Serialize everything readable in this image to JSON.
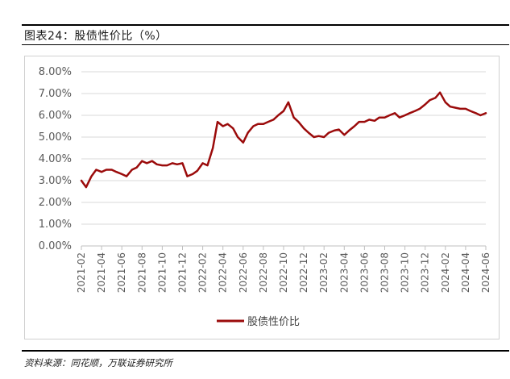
{
  "figure": {
    "title": "图表24：股债性价比（%）",
    "source": "资料来源：同花顺，万联证券研究所"
  },
  "chart_data": {
    "type": "line",
    "title": "",
    "xlabel": "",
    "ylabel": "",
    "ylim": [
      0,
      8
    ],
    "y_ticks": [
      "0.00%",
      "1.00%",
      "2.00%",
      "3.00%",
      "4.00%",
      "5.00%",
      "6.00%",
      "7.00%",
      "8.00%"
    ],
    "x_ticks": [
      "2021-02",
      "2021-04",
      "2021-06",
      "2021-08",
      "2021-10",
      "2021-12",
      "2022-02",
      "2022-04",
      "2022-06",
      "2022-08",
      "2022-10",
      "2022-12",
      "2023-02",
      "2023-04",
      "2023-06",
      "2023-08",
      "2023-10",
      "2023-12",
      "2024-02",
      "2024-04",
      "2024-06"
    ],
    "grid": true,
    "legend": "bottom-center",
    "color": "#9b0b0b",
    "series": [
      {
        "name": "股债性价比",
        "x": [
          "2021-02",
          "2021-02-15",
          "2021-03",
          "2021-03-15",
          "2021-04",
          "2021-04-15",
          "2021-05",
          "2021-05-15",
          "2021-06",
          "2021-06-15",
          "2021-07",
          "2021-07-15",
          "2021-08",
          "2021-08-15",
          "2021-09",
          "2021-09-15",
          "2021-10",
          "2021-10-15",
          "2021-11",
          "2021-11-15",
          "2021-12",
          "2021-12-15",
          "2022-01",
          "2022-01-15",
          "2022-02",
          "2022-02-15",
          "2022-03",
          "2022-03-15",
          "2022-04",
          "2022-04-15",
          "2022-05",
          "2022-05-15",
          "2022-06",
          "2022-06-15",
          "2022-07",
          "2022-07-15",
          "2022-08",
          "2022-08-15",
          "2022-09",
          "2022-09-15",
          "2022-10",
          "2022-10-15",
          "2022-11",
          "2022-11-15",
          "2022-12",
          "2022-12-15",
          "2023-01",
          "2023-01-15",
          "2023-02",
          "2023-02-15",
          "2023-03",
          "2023-03-15",
          "2023-04",
          "2023-04-15",
          "2023-05",
          "2023-05-15",
          "2023-06",
          "2023-06-15",
          "2023-07",
          "2023-07-15",
          "2023-08",
          "2023-08-15",
          "2023-09",
          "2023-09-15",
          "2023-10",
          "2023-10-15",
          "2023-11",
          "2023-11-15",
          "2023-12",
          "2023-12-15",
          "2024-01",
          "2024-01-15",
          "2024-02",
          "2024-02-15",
          "2024-03",
          "2024-03-15",
          "2024-04",
          "2024-04-15",
          "2024-05",
          "2024-05-15",
          "2024-06"
        ],
        "values": [
          3.0,
          2.7,
          3.2,
          3.5,
          3.4,
          3.5,
          3.5,
          3.4,
          3.3,
          3.2,
          3.5,
          3.6,
          3.9,
          3.8,
          3.9,
          3.75,
          3.7,
          3.7,
          3.8,
          3.75,
          3.8,
          3.2,
          3.3,
          3.45,
          3.8,
          3.7,
          4.5,
          5.7,
          5.5,
          5.6,
          5.4,
          5.0,
          4.75,
          5.2,
          5.5,
          5.6,
          5.6,
          5.7,
          5.8,
          6.0,
          6.2,
          6.6,
          5.9,
          5.7,
          5.4,
          5.2,
          5.0,
          5.05,
          5.0,
          5.2,
          5.3,
          5.35,
          5.1,
          5.3,
          5.5,
          5.7,
          5.7,
          5.8,
          5.75,
          5.9,
          5.9,
          6.0,
          6.1,
          5.9,
          6.0,
          6.1,
          6.2,
          6.3,
          6.5,
          6.7,
          6.8,
          7.05,
          6.6,
          6.4,
          6.35,
          6.3,
          6.3,
          6.2,
          6.1,
          6.0,
          6.1
        ]
      }
    ]
  }
}
